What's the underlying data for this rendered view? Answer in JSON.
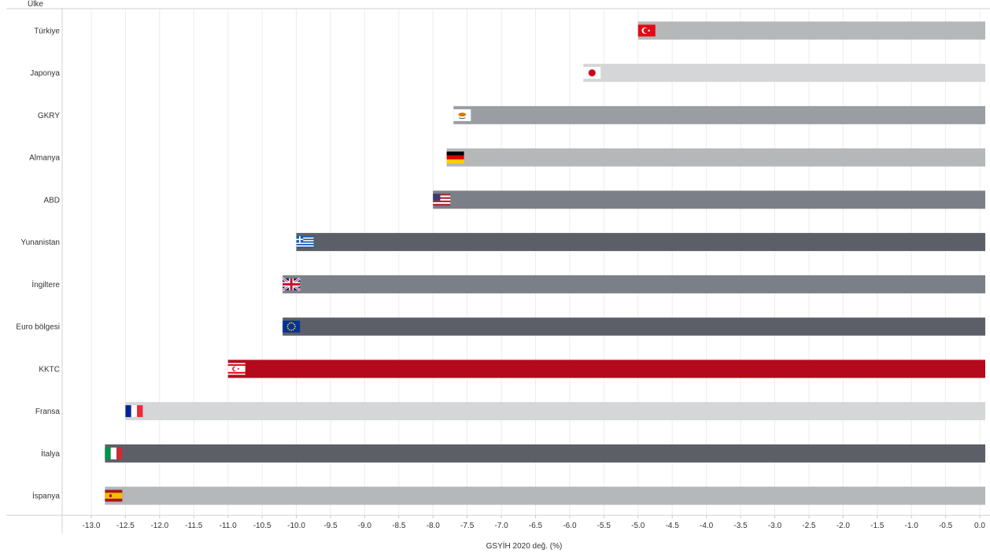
{
  "chart_data": {
    "type": "bar",
    "orientation": "horizontal",
    "row_header": "Ülke",
    "xlabel": "GSYİH 2020 değ. (%)",
    "xlim": [
      -13.3,
      0.1
    ],
    "xticks": [
      -13.0,
      -12.5,
      -12.0,
      -11.5,
      -11.0,
      -10.5,
      -10.0,
      -9.5,
      -9.0,
      -8.5,
      -8.0,
      -7.5,
      -7.0,
      -6.5,
      -6.0,
      -5.5,
      -5.0,
      -4.5,
      -4.0,
      -3.5,
      -3.0,
      -2.5,
      -2.0,
      -1.5,
      -1.0,
      -0.5,
      0.0
    ],
    "xtick_labels": [
      "-13.0",
      "-12.5",
      "-12.0",
      "-11.5",
      "-11.0",
      "-10.5",
      "-10.0",
      "-9.5",
      "-9.0",
      "-8.5",
      "-8.0",
      "-7.5",
      "-7.0",
      "-6.5",
      "-6.0",
      "-5.5",
      "-5.0",
      "-4.5",
      "-4.0",
      "-3.5",
      "-3.0",
      "-2.5",
      "-2.0",
      "-1.5",
      "-1.0",
      "-0.5",
      "0.0"
    ],
    "grid": true,
    "categories": [
      "Türkiye",
      "Japonya",
      "GKRY",
      "Almanya",
      "ABD",
      "Yunanistan",
      "İngiltere",
      "Euro bölgesi",
      "KKTC",
      "Fransa",
      "İtalya",
      "İspanya"
    ],
    "values": [
      -5.0,
      -5.8,
      -7.7,
      -7.8,
      -8.0,
      -10.0,
      -10.2,
      -10.2,
      -11.0,
      -12.5,
      -12.8,
      -12.8
    ],
    "bar_colors": [
      "#b5b7b8",
      "#d5d6d7",
      "#9a9ea3",
      "#b5b7b8",
      "#7b8088",
      "#5c5f67",
      "#7b8088",
      "#5c5f67",
      "#b30a1d",
      "#d5d6d7",
      "#5c5f67",
      "#b5b7b8"
    ],
    "flags": [
      "turkey-flag-icon",
      "japan-flag-icon",
      "cyprus-flag-icon",
      "germany-flag-icon",
      "usa-flag-icon",
      "greece-flag-icon",
      "uk-flag-icon",
      "eu-flag-icon",
      "trnc-flag-icon",
      "france-flag-icon",
      "italy-flag-icon",
      "spain-flag-icon"
    ]
  }
}
